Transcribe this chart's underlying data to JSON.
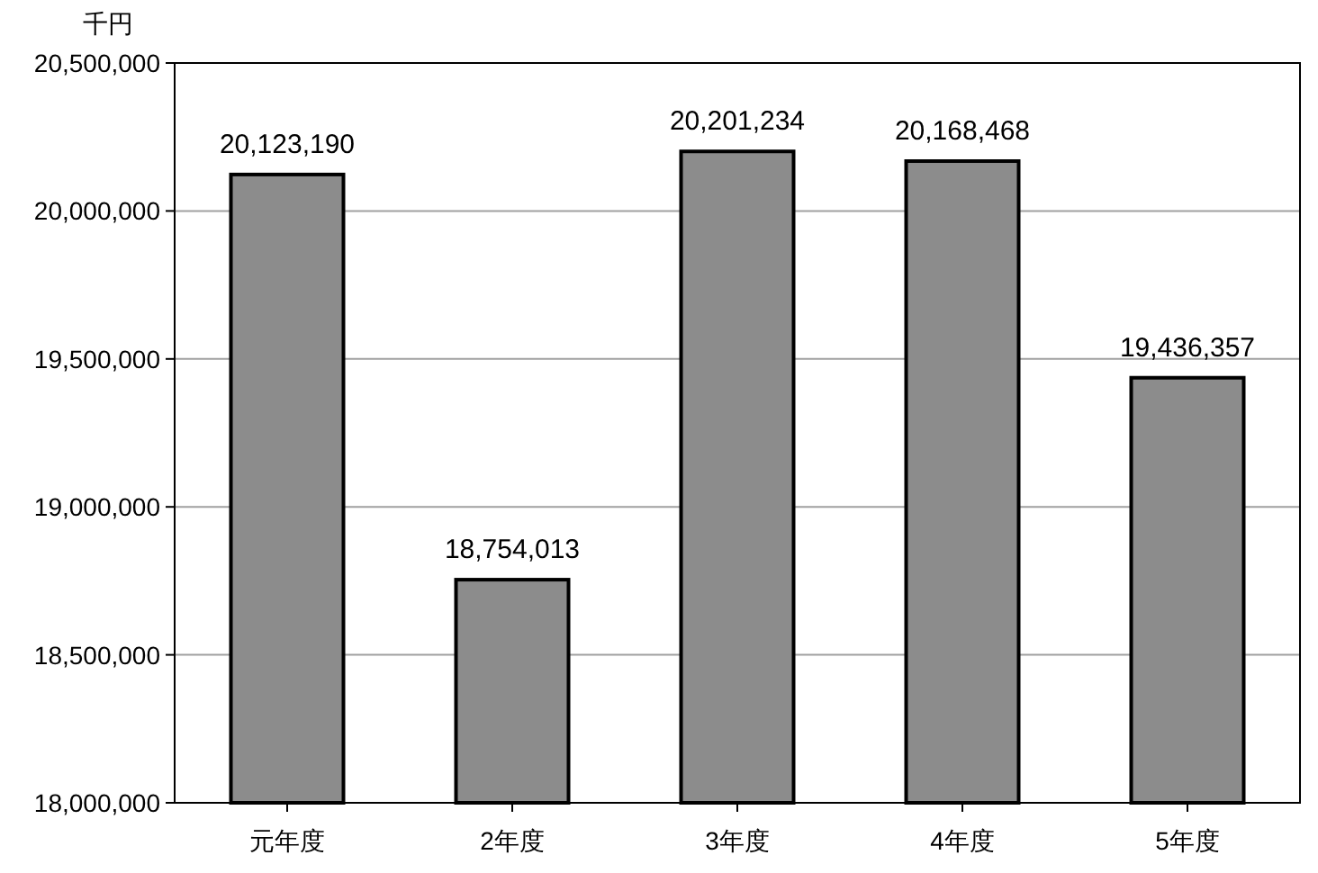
{
  "chart_data": {
    "type": "bar",
    "ylabel": "千円",
    "categories": [
      "元年度",
      "2年度",
      "3年度",
      "4年度",
      "5年度"
    ],
    "values": [
      20123190,
      18754013,
      20201234,
      20168468,
      19436357
    ],
    "value_labels": [
      "20,123,190",
      "18,754,013",
      "20,201,234",
      "20,168,468",
      "19,436,357"
    ],
    "color": "#8c8c8c",
    "ylim": [
      18000000,
      20500000
    ],
    "yticks": [
      {
        "value": 18000000,
        "label": "18,000,000"
      },
      {
        "value": 18500000,
        "label": "18,500,000"
      },
      {
        "value": 19000000,
        "label": "19,000,000"
      },
      {
        "value": 19500000,
        "label": "19,500,000"
      },
      {
        "value": 20000000,
        "label": "20,000,000"
      },
      {
        "value": 20500000,
        "label": "20,500,000"
      }
    ],
    "grid": "y"
  }
}
